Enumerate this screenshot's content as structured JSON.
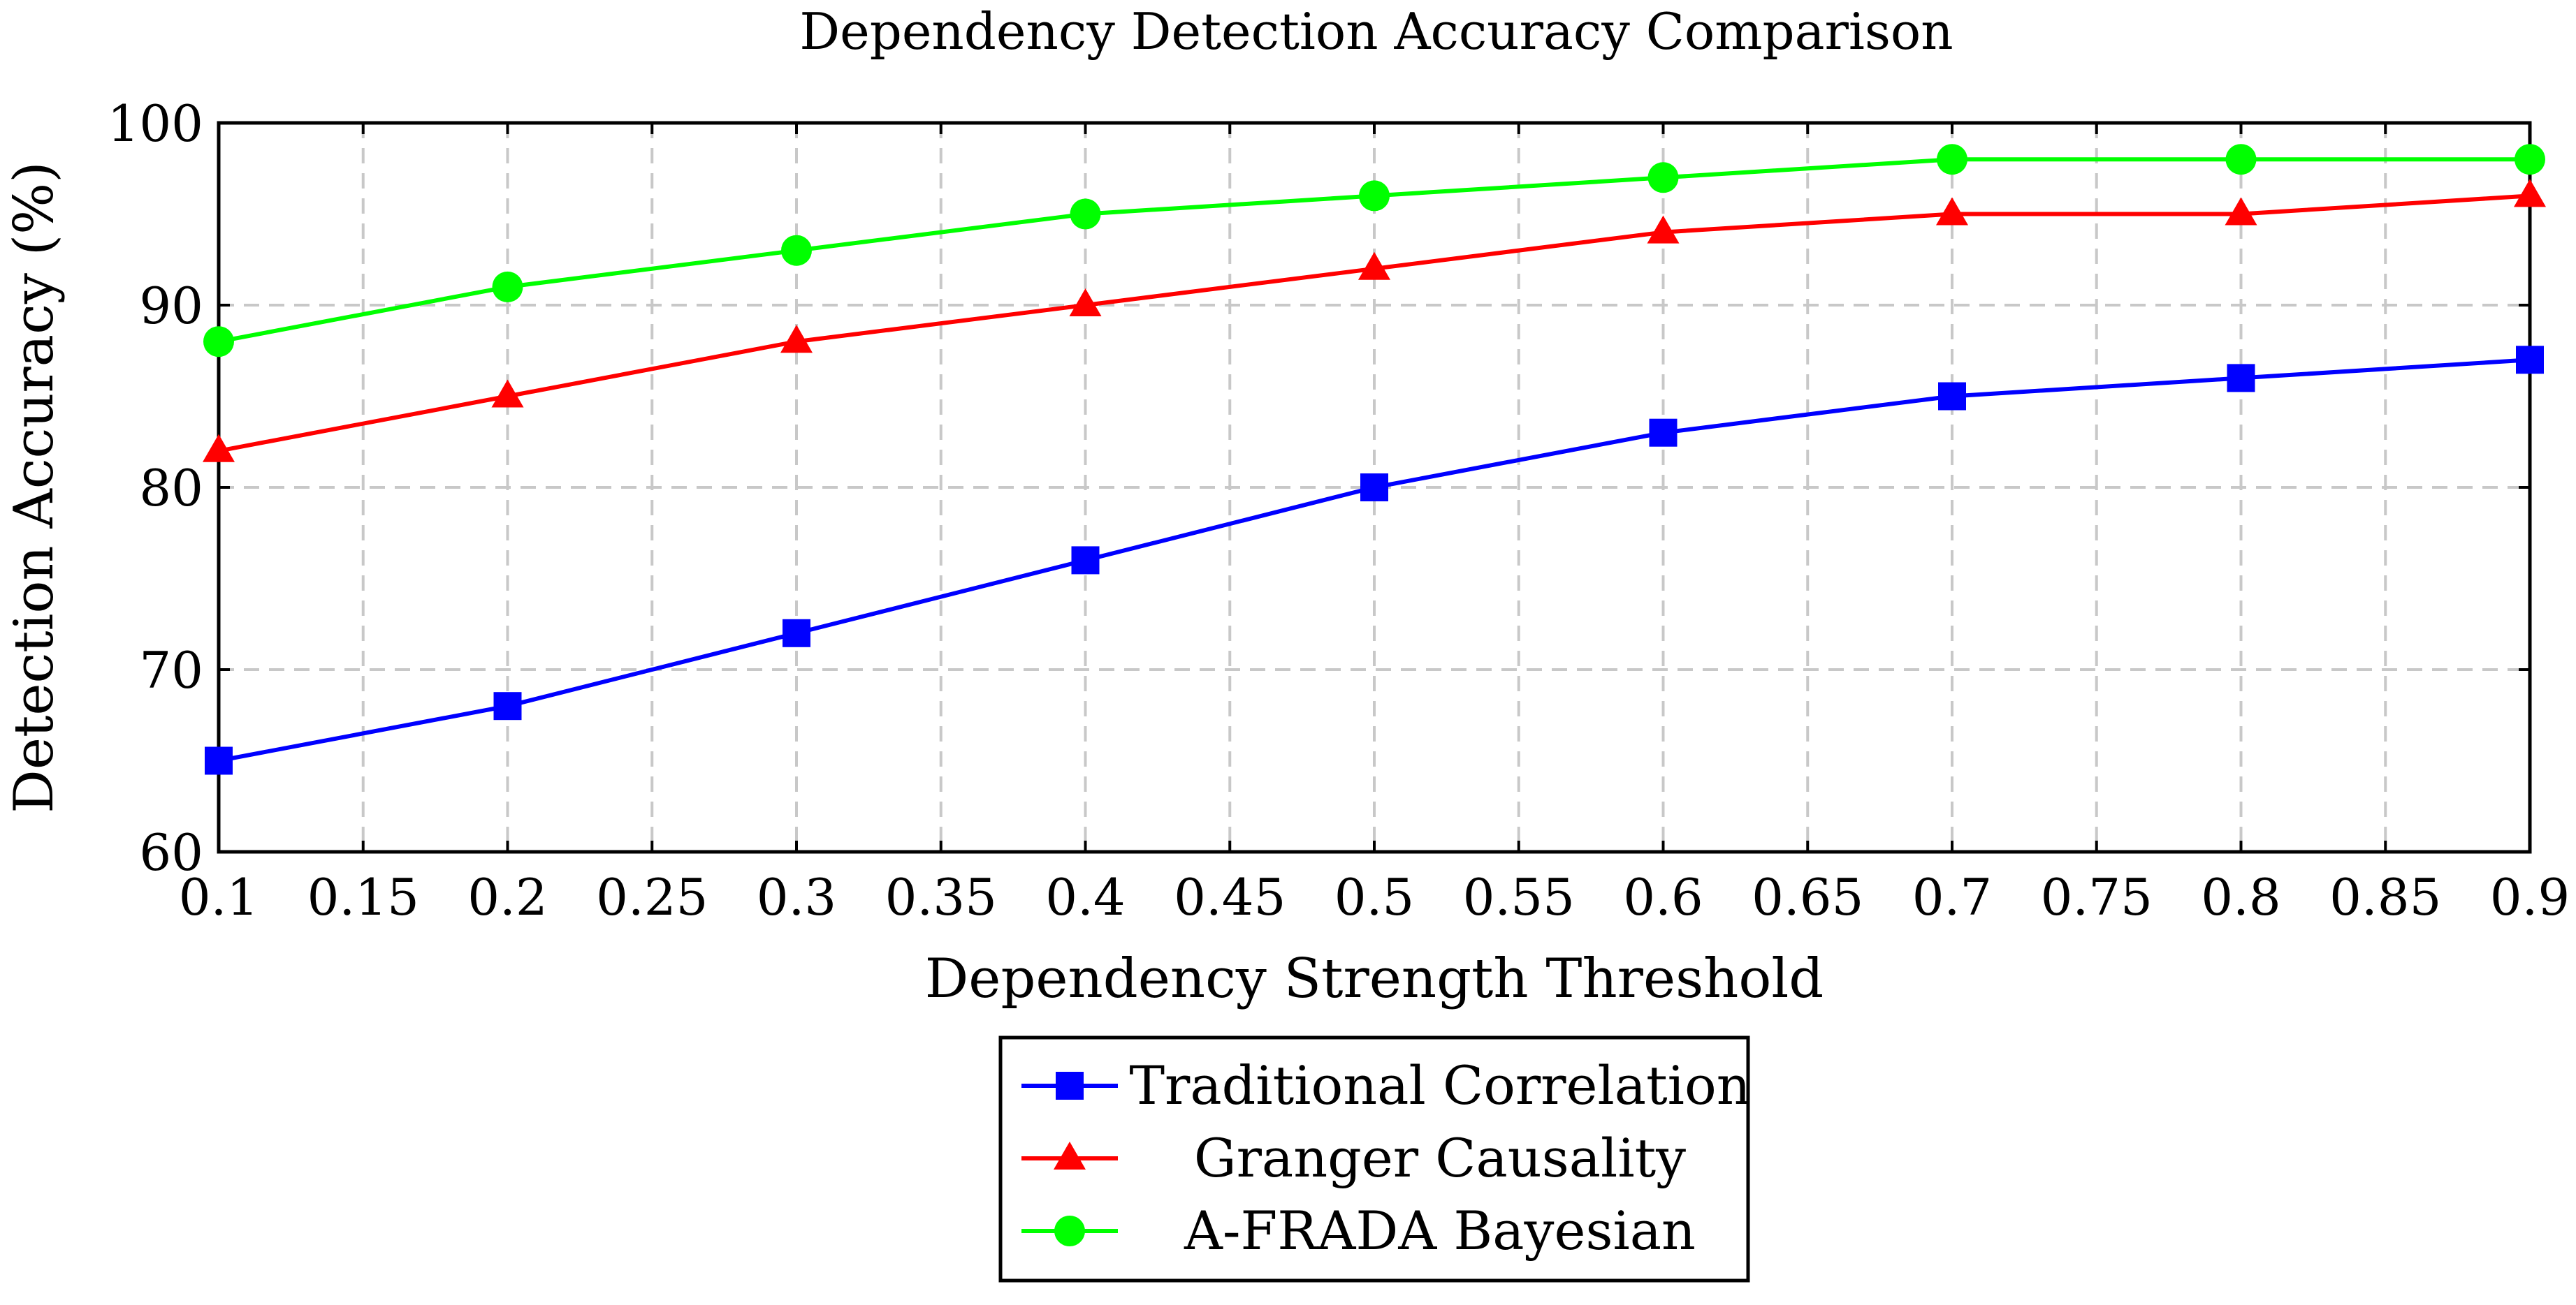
{
  "chart_data": {
    "type": "line",
    "title": "Dependency Detection Accuracy Comparison",
    "xlabel": "Dependency Strength Threshold",
    "ylabel": "Detection Accuracy (%)",
    "xlim": [
      0.1,
      0.9
    ],
    "ylim": [
      60,
      100
    ],
    "xticks": [
      0.1,
      0.15,
      0.2,
      0.25,
      0.3,
      0.35,
      0.4,
      0.45,
      0.5,
      0.55,
      0.6,
      0.65,
      0.7,
      0.75,
      0.8,
      0.85,
      0.9
    ],
    "xtick_labels": [
      "0.1",
      "0.15",
      "0.2",
      "0.25",
      "0.3",
      "0.35",
      "0.4",
      "0.45",
      "0.5",
      "0.55",
      "0.6",
      "0.65",
      "0.7",
      "0.75",
      "0.8",
      "0.85",
      "0.9"
    ],
    "yticks": [
      60,
      70,
      80,
      90,
      100
    ],
    "ytick_labels": [
      "60",
      "70",
      "80",
      "90",
      "100"
    ],
    "grid": true,
    "legend_position": "bottom-center-outside",
    "x": [
      0.1,
      0.2,
      0.3,
      0.4,
      0.5,
      0.6,
      0.7,
      0.8,
      0.9
    ],
    "series": [
      {
        "name": "Traditional Correlation",
        "color": "#0000ff",
        "marker": "square",
        "values": [
          65,
          68,
          72,
          76,
          80,
          83,
          85,
          86,
          87
        ]
      },
      {
        "name": "Granger Causality",
        "color": "#ff0000",
        "marker": "triangle",
        "values": [
          82,
          85,
          88,
          90,
          92,
          94,
          95,
          95,
          96
        ]
      },
      {
        "name": "A-FRADA Bayesian",
        "color": "#00ff00",
        "marker": "circle",
        "values": [
          88,
          91,
          93,
          95,
          96,
          97,
          98,
          98,
          98
        ]
      }
    ]
  }
}
